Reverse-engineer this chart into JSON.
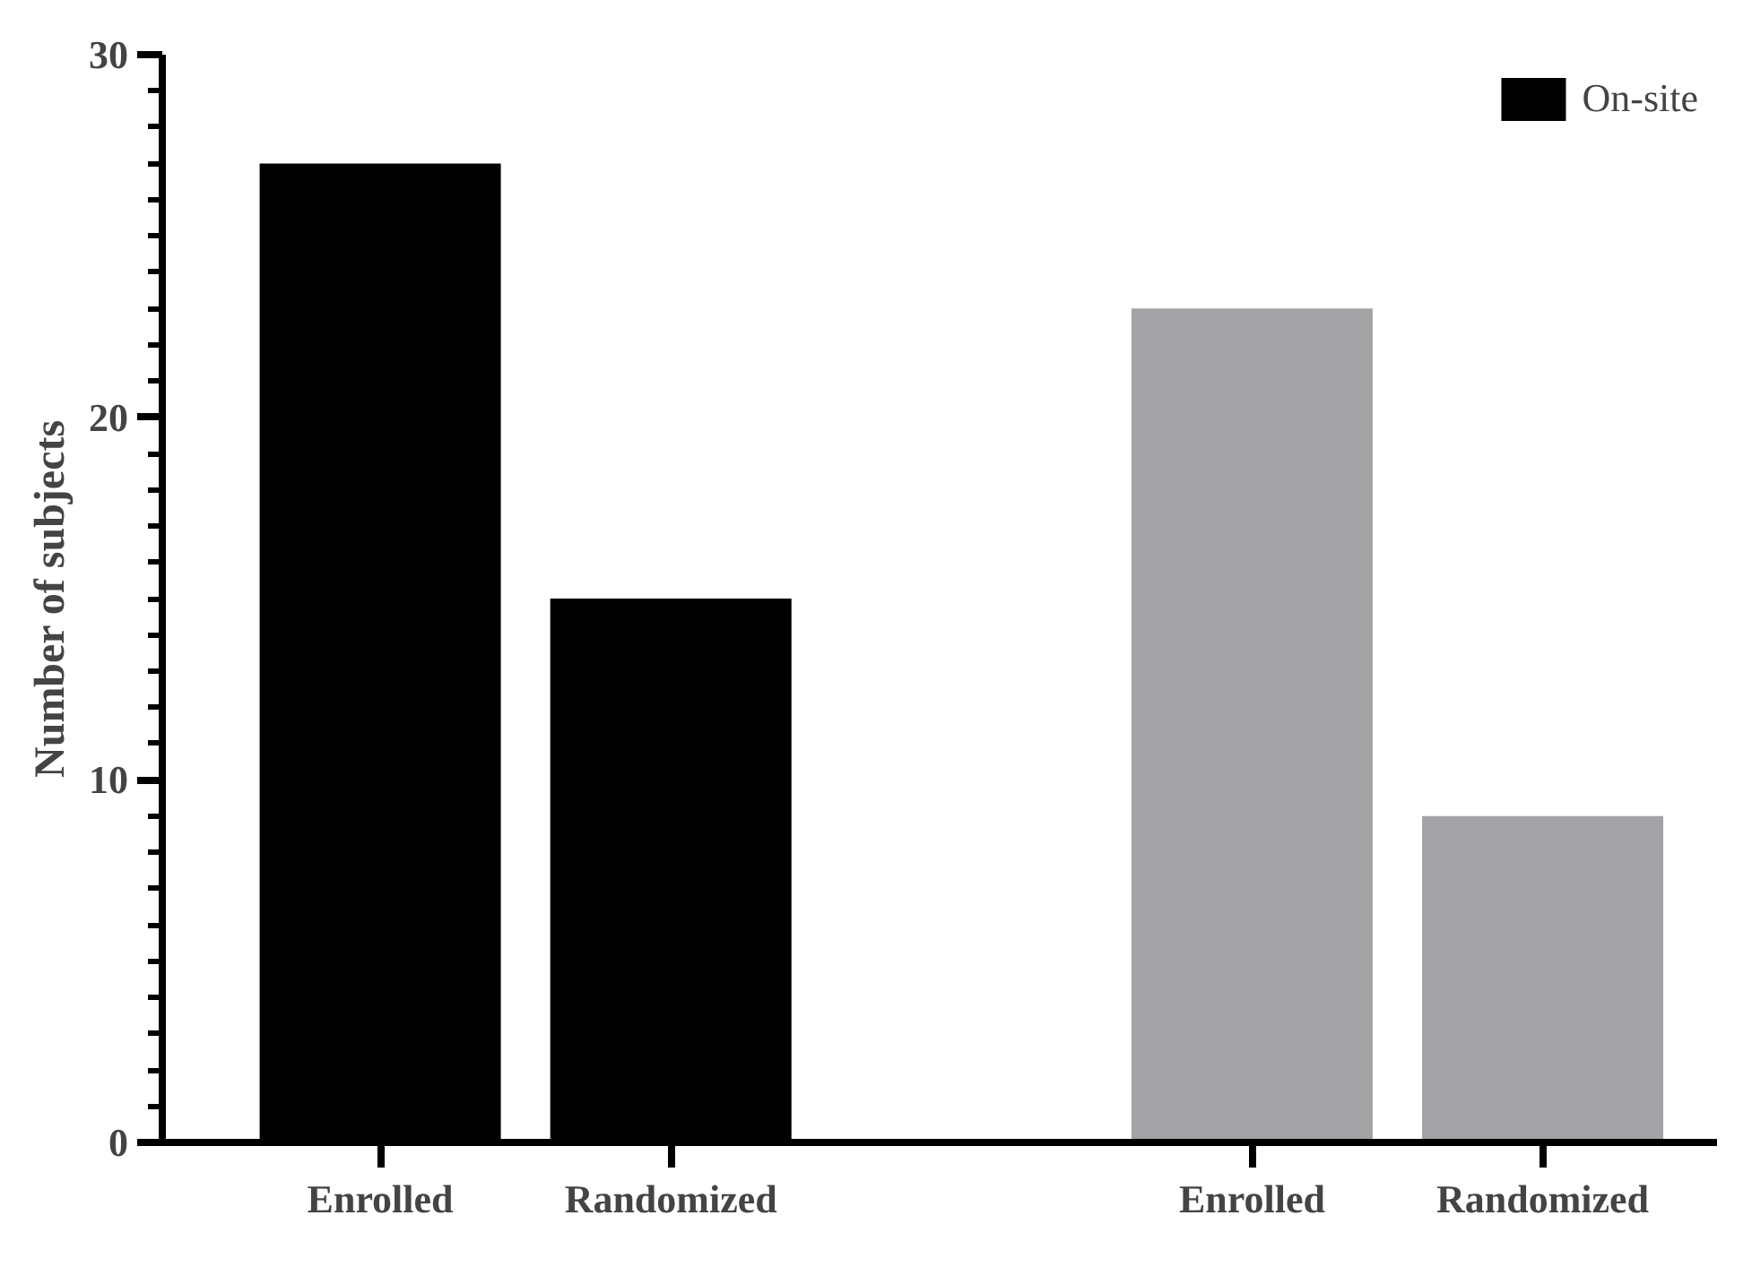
{
  "chart_data": {
    "type": "bar",
    "ylabel": "Number of subjects",
    "categories": [
      "Enrolled",
      "Randomized",
      null,
      "Enrolled",
      "Randomized"
    ],
    "series": [
      {
        "name": "On-site",
        "color": "#000000",
        "values": [
          27,
          15,
          null,
          null,
          null
        ]
      },
      {
        "color": "#a3a3a6",
        "values": [
          null,
          null,
          null,
          23,
          9
        ]
      }
    ],
    "ylim": [
      0,
      30
    ],
    "yticks": [
      0,
      10,
      20,
      30
    ],
    "grid": false,
    "legend": "top right"
  }
}
